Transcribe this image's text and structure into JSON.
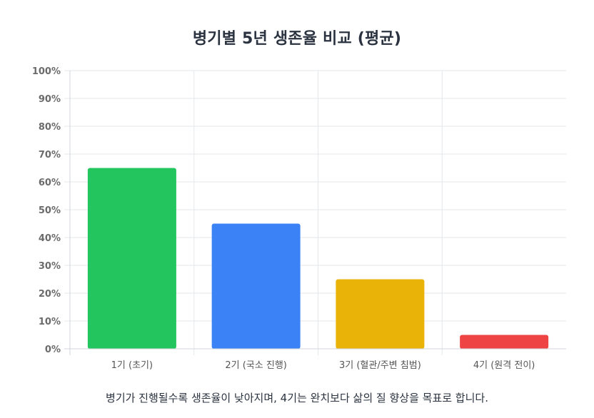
{
  "chart_data": {
    "type": "bar",
    "title": "병기별 5년 생존율 비교 (평균)",
    "categories": [
      "1기 (초기)",
      "2기 (국소 진행)",
      "3기 (혈관/주변 침범)",
      "4기 (원격 전이)"
    ],
    "values": [
      65,
      45,
      25,
      5
    ],
    "colors": [
      "#22c55e",
      "#3b82f6",
      "#eab308",
      "#ef4444"
    ],
    "ylim": [
      0,
      100
    ],
    "yticks": [
      "0%",
      "10%",
      "20%",
      "30%",
      "40%",
      "50%",
      "60%",
      "70%",
      "80%",
      "90%",
      "100%"
    ],
    "ytick_values": [
      0,
      10,
      20,
      30,
      40,
      50,
      60,
      70,
      80,
      90,
      100
    ],
    "grid": true,
    "legend": "none"
  },
  "caption": "병기가 진행될수록 생존율이 낮아지며, 4기는 완치보다 삶의 질 향상을 목표로 합니다."
}
